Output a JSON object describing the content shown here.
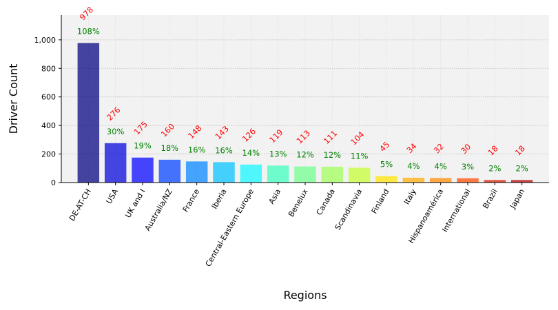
{
  "chart_data": {
    "type": "bar",
    "title": "",
    "xlabel": "Regions",
    "ylabel": "Driver Count",
    "categories": [
      "DE-AT-CH",
      "USA",
      "UK and I",
      "Australia/NZ",
      "France",
      "Iberia",
      "Central-Eastern Europe",
      "Asia",
      "Benelux",
      "Canada",
      "Scandinavia",
      "Finland",
      "Italy",
      "Hispanoamérica",
      "International",
      "Brazil",
      "Japan"
    ],
    "values": [
      978,
      276,
      175,
      160,
      148,
      143,
      126,
      119,
      113,
      111,
      104,
      45,
      34,
      32,
      30,
      18,
      18
    ],
    "value_labels": [
      "978",
      "276",
      "175",
      "160",
      "148",
      "143",
      "126",
      "119",
      "113",
      "111",
      "104",
      "45",
      "34",
      "32",
      "30",
      "18",
      "18"
    ],
    "percent_labels": [
      "108%",
      "30%",
      "19%",
      "18%",
      "16%",
      "16%",
      "14%",
      "13%",
      "12%",
      "12%",
      "11%",
      "5%",
      "4%",
      "4%",
      "3%",
      "2%",
      "2%"
    ],
    "bar_colors": [
      "#00007f",
      "#0000d8",
      "#0000ff",
      "#0040ff",
      "#0084ff",
      "#00c0ff",
      "#0ff8ff",
      "#3affbc",
      "#6dff8a",
      "#a0ff56",
      "#c4ff32",
      "#ffe500",
      "#ffad00",
      "#ff8b00",
      "#ff4a00",
      "#d41b00",
      "#b30000"
    ],
    "ylim": [
      0,
      1173
    ],
    "yticks": [
      0,
      200,
      400,
      600,
      800,
      1000
    ],
    "ytick_labels": [
      "0",
      "200",
      "400",
      "600",
      "800",
      "1,000"
    ],
    "grid": true,
    "background": "#f2f2f2",
    "value_label_color": "#ff0000",
    "percent_label_color": "#008000"
  }
}
